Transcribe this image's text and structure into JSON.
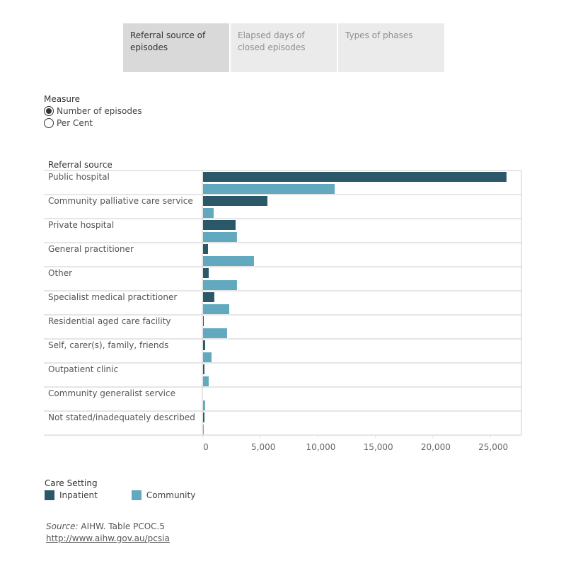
{
  "tabs": [
    {
      "label": "Referral source of episodes",
      "active": true
    },
    {
      "label": "Elapsed days of closed episodes",
      "active": false
    },
    {
      "label": "Types of phases",
      "active": false
    }
  ],
  "measure": {
    "title": "Measure",
    "options": [
      {
        "label": "Number of episodes",
        "checked": true
      },
      {
        "label": "Per Cent",
        "checked": false
      }
    ]
  },
  "colors": {
    "inpatient": "#2a5868",
    "community": "#62a9c0",
    "grid": "#cccccc"
  },
  "legend": {
    "title": "Care Setting",
    "items": [
      {
        "label": "Inpatient",
        "color": "#2a5868"
      },
      {
        "label": "Community",
        "color": "#62a9c0"
      }
    ]
  },
  "source": {
    "label": "Source:",
    "text": "AIHW. Table PCOC.5",
    "link": "http://www.aihw.gov.au/pcsia"
  },
  "chart_data": {
    "type": "bar",
    "orientation": "horizontal",
    "title": "",
    "ylabel": "Referral source",
    "xlabel": "",
    "xlim": [
      0,
      27700
    ],
    "xticks": [
      0,
      5000,
      10000,
      15000,
      20000,
      25000
    ],
    "xtick_labels": [
      "0",
      "5,000",
      "10,000",
      "15,000",
      "20,000",
      "25,000"
    ],
    "grid": true,
    "legend_position": "bottom-left",
    "categories": [
      "Public hospital",
      "Community palliative care service",
      "Private hospital",
      "General practitioner",
      "Other",
      "Specialist medical practitioner",
      "Residential aged care facility",
      "Self, carer(s), family, friends",
      "Outpatient clinic",
      "Community generalist service",
      "Not stated/inadequately described"
    ],
    "series": [
      {
        "name": "Inpatient",
        "values": [
          26400,
          5600,
          2830,
          430,
          490,
          980,
          60,
          180,
          120,
          0,
          120
        ]
      },
      {
        "name": "Community",
        "values": [
          11450,
          920,
          2950,
          4430,
          2950,
          2280,
          2090,
          740,
          490,
          180,
          60
        ]
      }
    ]
  }
}
